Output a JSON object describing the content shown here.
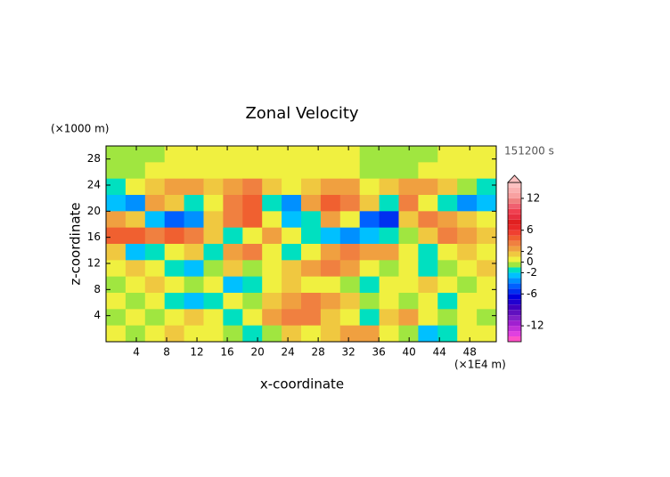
{
  "chart_data": {
    "type": "heatmap",
    "title": "Zonal Velocity",
    "xlabel": "x-coordinate",
    "ylabel": "z-coordinate",
    "xunit": "(×1E4 m)",
    "yunit": "(×1000 m)",
    "time_label": "151200 s",
    "xlim": [
      0,
      51.5
    ],
    "ylim": [
      0,
      30
    ],
    "xticks": [
      4,
      8,
      12,
      16,
      20,
      24,
      28,
      32,
      36,
      40,
      44,
      48
    ],
    "yticks": [
      4,
      8,
      12,
      16,
      20,
      24,
      28
    ],
    "z": [
      [
        -0.5,
        -0.5,
        -0.5,
        0.5,
        0.5,
        0.5,
        0.5,
        0.5,
        0.5,
        0.5,
        0.5,
        0.5,
        0.5,
        -0.5,
        -0.5,
        -0.5,
        -0.5,
        0.5,
        0.5,
        0.5
      ],
      [
        -0.5,
        -0.5,
        0.5,
        0.5,
        0.5,
        0.5,
        0.5,
        0.5,
        0.5,
        0.5,
        0.5,
        0.5,
        0.5,
        -0.5,
        -0.5,
        -0.5,
        0.5,
        0.5,
        0.5,
        0.5
      ],
      [
        -1.5,
        0.5,
        1.5,
        2.5,
        2.5,
        1.5,
        2.5,
        3.5,
        1.5,
        0.5,
        1.5,
        2.5,
        2.5,
        0.5,
        1.5,
        2.5,
        2.5,
        1.5,
        -0.5,
        -1.5
      ],
      [
        -2.5,
        -3.5,
        2.5,
        1.5,
        -1.5,
        0.5,
        3.5,
        4.5,
        -1.5,
        -3.5,
        2.5,
        4.5,
        3.5,
        1.5,
        -1.5,
        3.5,
        0.5,
        -1.5,
        -3.5,
        -2.5
      ],
      [
        2.5,
        1.5,
        -2.5,
        -4.5,
        -3.5,
        1.5,
        3.5,
        4.5,
        0.5,
        -2.5,
        -1.5,
        2.5,
        0.5,
        -4.5,
        -5.5,
        1.5,
        3.5,
        2.5,
        1.5,
        0.5
      ],
      [
        4.5,
        4.5,
        3.5,
        4.5,
        3.5,
        1.5,
        -1.5,
        0.5,
        2.5,
        0.5,
        -1.5,
        -2.5,
        -3.5,
        -2.5,
        -1.5,
        -0.5,
        1.5,
        3.5,
        2.5,
        1.5
      ],
      [
        1.5,
        -2.5,
        -1.5,
        0.5,
        1.5,
        -1.5,
        2.5,
        3.5,
        0.5,
        -1.5,
        0.5,
        2.5,
        3.5,
        2.5,
        2.5,
        0.5,
        -1.5,
        0.5,
        1.5,
        0.5
      ],
      [
        0.5,
        1.5,
        0.5,
        -1.5,
        -2.5,
        -0.5,
        1.5,
        -0.5,
        0.5,
        1.5,
        2.5,
        3.5,
        2.5,
        0.5,
        -0.5,
        0.5,
        -1.5,
        -0.5,
        0.5,
        1.5
      ],
      [
        -0.5,
        0.5,
        1.5,
        0.5,
        -0.5,
        0.5,
        -2.5,
        -1.5,
        0.5,
        1.5,
        0.5,
        0.5,
        -0.5,
        -1.5,
        0.5,
        0.5,
        1.5,
        0.5,
        -0.5,
        0.5
      ],
      [
        0.5,
        -0.5,
        0.5,
        -1.5,
        -2.5,
        -1.5,
        0.5,
        -0.5,
        1.5,
        2.5,
        3.5,
        2.5,
        1.5,
        -0.5,
        0.5,
        -0.5,
        0.5,
        -1.5,
        0.5,
        0.5
      ],
      [
        -0.5,
        0.5,
        -0.5,
        0.5,
        1.5,
        0.5,
        -1.5,
        0.5,
        2.5,
        3.5,
        3.5,
        1.5,
        0.5,
        -1.5,
        1.5,
        2.5,
        0.5,
        -0.5,
        0.5,
        -0.5
      ],
      [
        0.5,
        -0.5,
        0.5,
        1.5,
        0.5,
        0.5,
        -0.5,
        -1.5,
        -0.5,
        1.5,
        0.5,
        1.5,
        2.5,
        2.5,
        0.5,
        -0.5,
        -2.5,
        -1.5,
        0.5,
        0.5
      ]
    ],
    "levels": [
      -15,
      -14,
      -13,
      -12,
      -11,
      -10,
      -9,
      -8,
      -7,
      -6,
      -5,
      -4,
      -3,
      -2,
      -1,
      0,
      1,
      2,
      3,
      4,
      5,
      6,
      7,
      8,
      9,
      10,
      11,
      12,
      13,
      14,
      15
    ],
    "colors": [
      "#ff50c8",
      "#e040e0",
      "#c030d8",
      "#a020d0",
      "#8020c8",
      "#6010c0",
      "#4000c0",
      "#2000d0",
      "#0000e0",
      "#0030f0",
      "#0060ff",
      "#0090ff",
      "#00c0ff",
      "#00e0c0",
      "#a0e640",
      "#f0f040",
      "#f0c840",
      "#f0a040",
      "#f08040",
      "#f06030",
      "#f04030",
      "#e82828",
      "#e02020",
      "#e83040",
      "#f04050",
      "#f06070",
      "#f08080",
      "#f8a0a0",
      "#fab0b0",
      "#fcc0c0"
    ],
    "cbar_ticks": [
      12,
      6,
      2,
      0,
      -2,
      -6,
      -12
    ]
  }
}
